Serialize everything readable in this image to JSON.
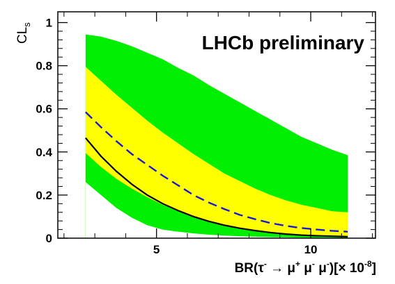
{
  "chart_data": {
    "type": "area",
    "title": "LHCb preliminary",
    "ylabel": "CL",
    "ylabel_sub": "s",
    "xlabel": {
      "prefix": "BR(τ",
      "tau_sup": "-",
      "arrow": " → μ",
      "mu1_sup": "+",
      "mid1": " μ",
      "mu2_sup": "-",
      "mid2": " μ",
      "mu3_sup": "-",
      "mid3": ")[× 10",
      "exp": "-8",
      "suffix": "]"
    },
    "xlim": [
      1.8,
      12.1
    ],
    "ylim": [
      0,
      1.05
    ],
    "xticks": [
      5,
      10
    ],
    "xtick_labels": [
      "5",
      "10"
    ],
    "yticks": [
      0,
      0.2,
      0.4,
      0.6,
      0.8,
      1
    ],
    "ytick_labels": [
      "0",
      "0.2",
      "0.4",
      "0.6",
      "0.8",
      "1"
    ],
    "grid": false,
    "x": [
      2.7,
      3.2,
      3.7,
      4.2,
      4.7,
      5.2,
      5.7,
      6.2,
      6.7,
      7.2,
      7.7,
      8.2,
      8.7,
      9.2,
      9.7,
      10.2,
      10.7,
      11.2
    ],
    "series": [
      {
        "role": "band_2sigma_upper",
        "color": "#00ee00",
        "values": [
          0.945,
          0.935,
          0.915,
          0.89,
          0.86,
          0.83,
          0.79,
          0.755,
          0.71,
          0.67,
          0.63,
          0.59,
          0.55,
          0.51,
          0.47,
          0.44,
          0.41,
          0.385
        ]
      },
      {
        "role": "band_1sigma_upper",
        "color": "#ffff00",
        "values": [
          0.795,
          0.73,
          0.665,
          0.605,
          0.545,
          0.49,
          0.44,
          0.39,
          0.345,
          0.3,
          0.265,
          0.23,
          0.2,
          0.175,
          0.155,
          0.14,
          0.125,
          0.12
        ]
      },
      {
        "role": "band_1sigma_lower",
        "color": "#00ee00",
        "values": [
          0.395,
          0.33,
          0.275,
          0.23,
          0.19,
          0.155,
          0.125,
          0.1,
          0.08,
          0.062,
          0.048,
          0.036,
          0.027,
          0.02,
          0.015,
          0.012,
          0.01,
          0.008
        ]
      },
      {
        "role": "band_2sigma_lower",
        "color": "#ffffff",
        "values": [
          0.26,
          0.2,
          0.14,
          0.095,
          0.06,
          0.04,
          0.03,
          0.022,
          0.016,
          0.012,
          0.009,
          0.007,
          0.005,
          0.004,
          0.003,
          0.002,
          0.002,
          0.001
        ]
      },
      {
        "role": "expected_median",
        "color": "#1a1acc",
        "style": "dashed",
        "values": [
          0.585,
          0.515,
          0.45,
          0.39,
          0.34,
          0.29,
          0.245,
          0.2,
          0.165,
          0.135,
          0.108,
          0.088,
          0.07,
          0.057,
          0.047,
          0.04,
          0.034,
          0.03
        ]
      },
      {
        "role": "observed",
        "color": "#000000",
        "style": "solid",
        "values": [
          0.465,
          0.38,
          0.31,
          0.25,
          0.2,
          0.16,
          0.128,
          0.1,
          0.078,
          0.06,
          0.046,
          0.035,
          0.026,
          0.019,
          0.014,
          0.011,
          0.009,
          0.007
        ]
      }
    ]
  }
}
